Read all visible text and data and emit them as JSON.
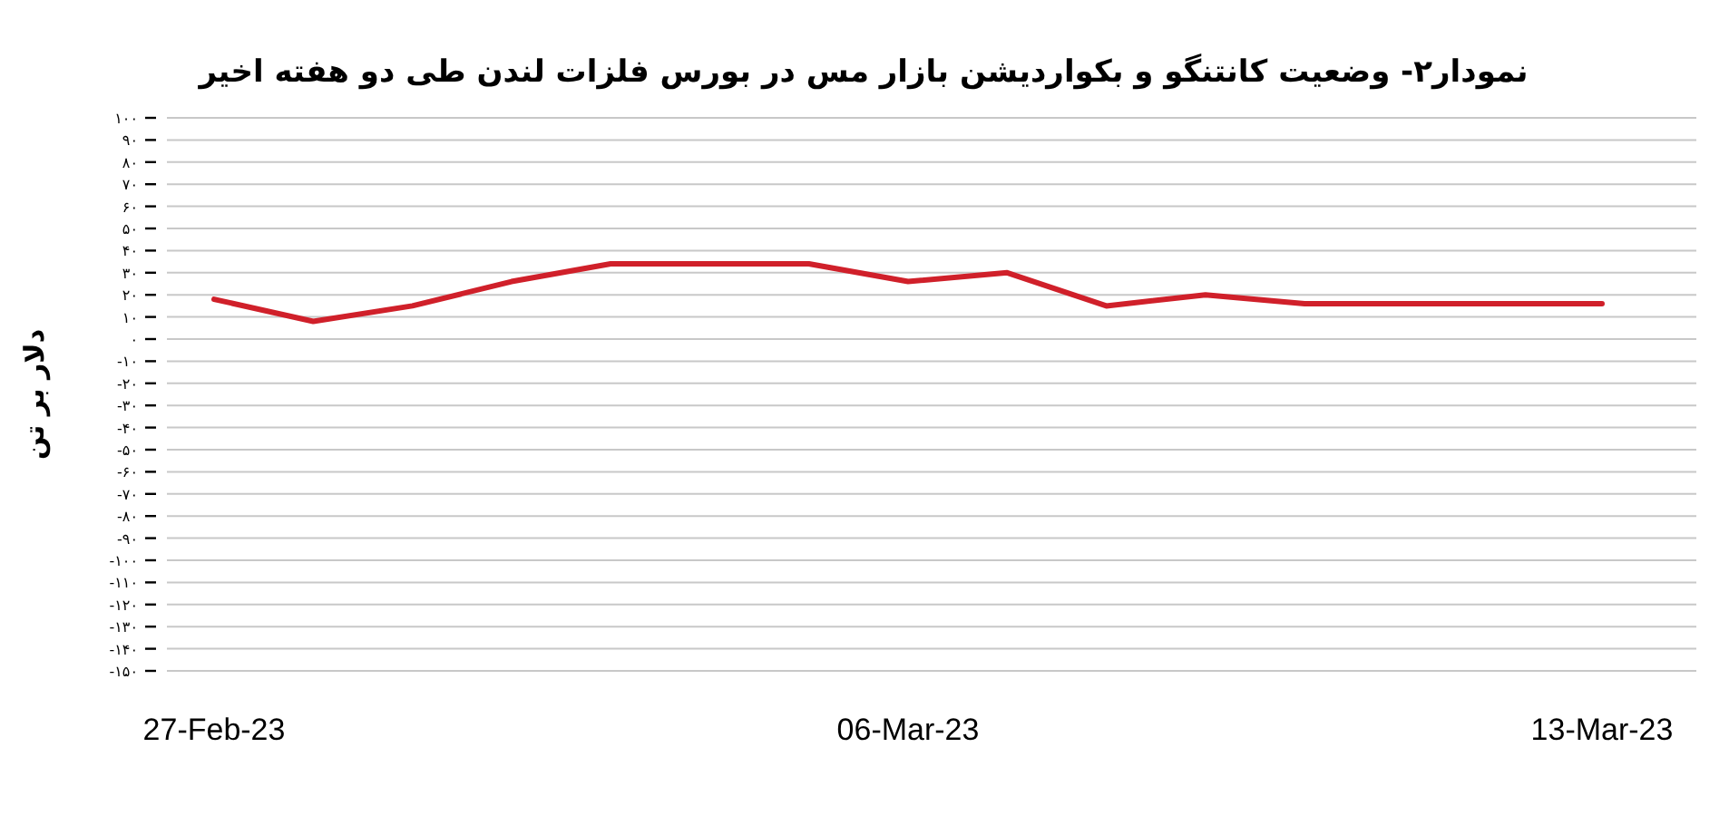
{
  "chart_data": {
    "type": "line",
    "title": "نمودار۲- وضعیت کانتنگو و بکواردیشن بازار مس در بورس فلزات لندن طی دو هفته اخیر",
    "ylabel": "دلار بر تن",
    "categories": [
      "27-Feb-23",
      null,
      null,
      null,
      null,
      null,
      null,
      "06-Mar-23",
      null,
      null,
      null,
      null,
      null,
      null,
      "13-Mar-23"
    ],
    "series": [
      {
        "color": "#d0202a",
        "values": [
          18,
          8,
          15,
          26,
          34,
          34,
          34,
          26,
          30,
          15,
          20,
          16,
          16,
          16,
          16
        ]
      }
    ],
    "ylim": [
      -150,
      100
    ],
    "yticks": [
      {
        "value": 100,
        "label": "۱۰۰"
      },
      {
        "value": 90,
        "label": "۹۰"
      },
      {
        "value": 80,
        "label": "۸۰"
      },
      {
        "value": 70,
        "label": "۷۰"
      },
      {
        "value": 60,
        "label": "۶۰"
      },
      {
        "value": 50,
        "label": "۵۰"
      },
      {
        "value": 40,
        "label": "۴۰"
      },
      {
        "value": 30,
        "label": "۳۰"
      },
      {
        "value": 20,
        "label": "۲۰"
      },
      {
        "value": 10,
        "label": "۱۰"
      },
      {
        "value": 0,
        "label": "۰"
      },
      {
        "value": -10,
        "label": "-۱۰"
      },
      {
        "value": -20,
        "label": "-۲۰"
      },
      {
        "value": -30,
        "label": "-۳۰"
      },
      {
        "value": -40,
        "label": "-۴۰"
      },
      {
        "value": -50,
        "label": "-۵۰"
      },
      {
        "value": -60,
        "label": "-۶۰"
      },
      {
        "value": -70,
        "label": "-۷۰"
      },
      {
        "value": -80,
        "label": "-۸۰"
      },
      {
        "value": -90,
        "label": "-۹۰"
      },
      {
        "value": -100,
        "label": "-۱۰۰"
      },
      {
        "value": -110,
        "label": "-۱۱۰"
      },
      {
        "value": -120,
        "label": "-۱۲۰"
      },
      {
        "value": -130,
        "label": "-۱۳۰"
      },
      {
        "value": -140,
        "label": "-۱۴۰"
      },
      {
        "value": -150,
        "label": "-۱۵۰"
      }
    ],
    "grid": "y",
    "marker": "none",
    "line_style": "solid"
  }
}
